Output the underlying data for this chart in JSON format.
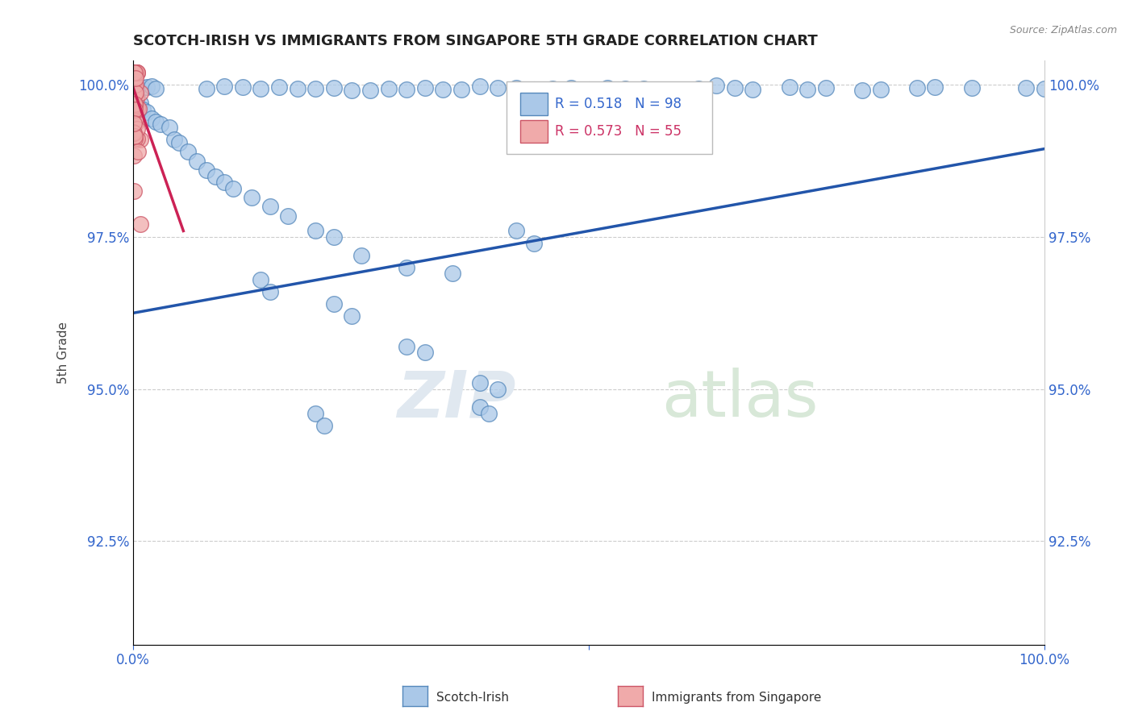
{
  "title": "SCOTCH-IRISH VS IMMIGRANTS FROM SINGAPORE 5TH GRADE CORRELATION CHART",
  "source_text": "Source: ZipAtlas.com",
  "ylabel": "5th Grade",
  "xmin": 0.0,
  "xmax": 1.0,
  "ymin": 0.908,
  "ymax": 1.004,
  "yticks": [
    0.925,
    0.95,
    0.975,
    1.0
  ],
  "ytick_labels": [
    "92.5%",
    "95.0%",
    "97.5%",
    "100.0%"
  ],
  "blue_R": 0.518,
  "blue_N": 98,
  "pink_R": 0.573,
  "pink_N": 55,
  "blue_color": "#aac8e8",
  "blue_edge_color": "#5588bb",
  "pink_color": "#f0aaaa",
  "pink_edge_color": "#cc5566",
  "blue_line_color": "#2255aa",
  "pink_line_color": "#cc2255",
  "legend_label_blue": "Scotch-Irish",
  "legend_label_pink": "Immigrants from Singapore",
  "blue_line_x0": 0.0,
  "blue_line_y0": 0.9625,
  "blue_line_x1": 1.0,
  "blue_line_y1": 0.9895,
  "pink_line_x0": 0.0,
  "pink_line_y0": 0.9995,
  "pink_line_x1": 0.055,
  "pink_line_y1": 0.976
}
